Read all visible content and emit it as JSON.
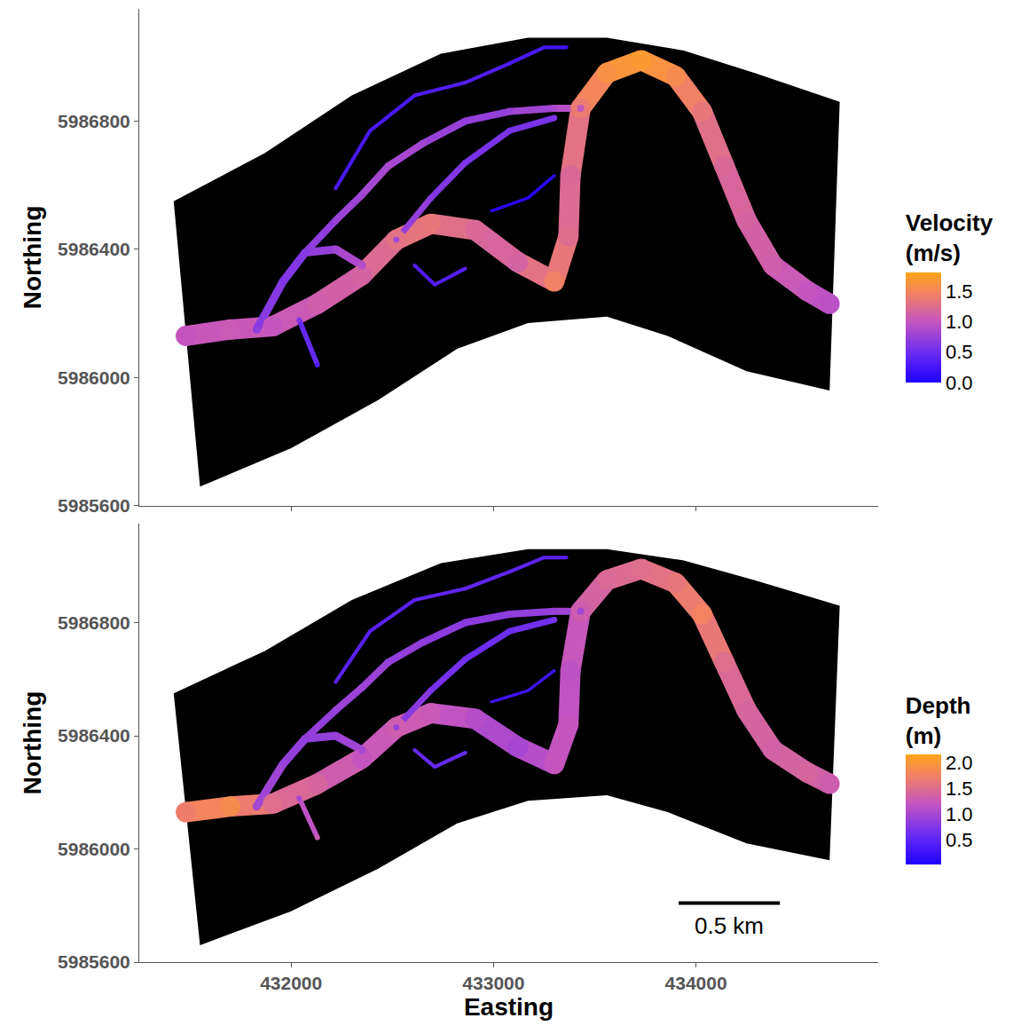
{
  "chart_data": [
    {
      "type": "map",
      "ylabel": "Northing",
      "xlim": [
        431250,
        434900
      ],
      "ylim": [
        5985600,
        5987150
      ],
      "xticks": [
        432000,
        433000,
        434000
      ],
      "yticks": [
        5985600,
        5986000,
        5986400,
        5986800
      ],
      "tick_labels": "y",
      "grid": false,
      "colorbar": {
        "title": "Velocity (m/s)",
        "range": [
          0,
          1.81
        ],
        "ticks": [
          {
            "value": 0,
            "label": "0.0"
          },
          0.5,
          {
            "value": 1,
            "label": "1.0"
          },
          1.5
        ]
      },
      "domain": {
        "x": [
          431420,
          431870,
          432300,
          432740,
          433170,
          433560,
          433940,
          434290,
          434710,
          434660,
          434250,
          433860,
          433560,
          433170,
          432820,
          432430,
          432000,
          431550
        ],
        "y": [
          5986550,
          5986700,
          5986880,
          5987010,
          5987060,
          5987060,
          5987020,
          5986950,
          5986860,
          5985960,
          5986020,
          5986130,
          5986190,
          5986170,
          5986090,
          5985930,
          5985780,
          5985660
        ]
      },
      "channels": [
        {
          "width": 100,
          "x": [
            431480,
            431700,
            431910,
            432130,
            432350,
            432520,
            432690,
            432910,
            433120,
            433300,
            433370,
            433380,
            433430,
            433560,
            433730,
            433900,
            434030,
            434140,
            434250,
            434380,
            434550,
            434660
          ],
          "y": [
            5986130,
            5986150,
            5986160,
            5986230,
            5986320,
            5986430,
            5986480,
            5986460,
            5986360,
            5986300,
            5986440,
            5986630,
            5986840,
            5986950,
            5986990,
            5986940,
            5986830,
            5986660,
            5986490,
            5986350,
            5986270,
            5986230
          ],
          "values": [
            1.0,
            1.05,
            1.0,
            1.1,
            1.15,
            1.3,
            1.35,
            1.2,
            1.15,
            1.45,
            1.25,
            1.2,
            1.4,
            1.6,
            1.7,
            1.55,
            1.35,
            1.2,
            1.15,
            1.1,
            1.0,
            0.95
          ]
        },
        {
          "width": 40,
          "x": [
            431830,
            431960,
            432070,
            432220,
            432350
          ],
          "y": [
            5986150,
            5986300,
            5986390,
            5986400,
            5986350
          ],
          "values": [
            0.7,
            0.6,
            0.65,
            0.8,
            0.9
          ]
        },
        {
          "width": 25,
          "x": [
            432040,
            432130
          ],
          "y": [
            5986180,
            5986040
          ],
          "values": [
            0.6,
            0.3
          ]
        },
        {
          "width": 35,
          "x": [
            432070,
            432220,
            432350,
            432480,
            432650,
            432860,
            433080,
            433300,
            433430
          ],
          "y": [
            5986390,
            5986490,
            5986570,
            5986660,
            5986730,
            5986800,
            5986830,
            5986840,
            5986840
          ],
          "values": [
            0.65,
            0.75,
            0.8,
            0.85,
            0.8,
            0.7,
            0.75,
            0.85,
            1.0
          ]
        },
        {
          "width": 18,
          "x": [
            432220,
            432390,
            432610,
            432860,
            433080,
            433250,
            433360
          ],
          "y": [
            5986590,
            5986770,
            5986880,
            5986920,
            5986980,
            5987030,
            5987030
          ],
          "values": [
            0.3,
            0.25,
            0.3,
            0.35,
            0.3,
            0.25,
            0.2
          ]
        },
        {
          "width": 30,
          "x": [
            432520,
            432690,
            432860,
            433080,
            433300
          ],
          "y": [
            5986430,
            5986560,
            5986670,
            5986770,
            5986810
          ],
          "values": [
            0.8,
            0.65,
            0.6,
            0.55,
            0.6
          ]
        },
        {
          "width": 18,
          "x": [
            432610,
            432710,
            432860
          ],
          "y": [
            5986350,
            5986290,
            5986340
          ],
          "values": [
            0.35,
            0.3,
            0.4
          ]
        },
        {
          "width": 15,
          "x": [
            432990,
            433170,
            433300
          ],
          "y": [
            5986520,
            5986560,
            5986630
          ],
          "values": [
            0.1,
            0.05,
            0.1
          ]
        }
      ]
    },
    {
      "type": "map",
      "xlabel": "Easting",
      "ylabel": "Northing",
      "xlim": [
        431250,
        434900
      ],
      "ylim": [
        5985600,
        5987150
      ],
      "xticks": [
        432000,
        433000,
        434000
      ],
      "yticks": [
        5985600,
        5986000,
        5986400,
        5986800
      ],
      "grid": false,
      "colorbar": {
        "title": "Depth (m)",
        "range": [
          0.03,
          2.15
        ],
        "ticks": [
          0.5,
          {
            "value": 1,
            "label": "1.0"
          },
          1.5,
          {
            "value": 2,
            "label": "2.0"
          }
        ]
      },
      "scale_bar": {
        "length": 500,
        "label": "0.5 km"
      },
      "domain": {
        "x": [
          431420,
          431870,
          432300,
          432740,
          433170,
          433560,
          433940,
          434290,
          434710,
          434660,
          434250,
          433860,
          433560,
          433170,
          432820,
          432430,
          432000,
          431550
        ],
        "y": [
          5986550,
          5986700,
          5986880,
          5987010,
          5987060,
          5987060,
          5987020,
          5986950,
          5986860,
          5985960,
          5986020,
          5986130,
          5986190,
          5986170,
          5986090,
          5985930,
          5985780,
          5985660
        ]
      },
      "channels": [
        {
          "width": 100,
          "x": [
            431480,
            431700,
            431910,
            432130,
            432350,
            432520,
            432690,
            432910,
            433120,
            433300,
            433370,
            433380,
            433430,
            433560,
            433730,
            433900,
            434030,
            434140,
            434250,
            434380,
            434550,
            434660
          ],
          "y": [
            5986130,
            5986150,
            5986160,
            5986230,
            5986320,
            5986430,
            5986480,
            5986460,
            5986360,
            5986300,
            5986440,
            5986630,
            5986840,
            5986950,
            5986990,
            5986940,
            5986830,
            5986660,
            5986490,
            5986350,
            5986270,
            5986230
          ],
          "values": [
            1.7,
            1.85,
            1.5,
            1.4,
            1.2,
            1.3,
            1.25,
            1.1,
            1.0,
            1.2,
            1.2,
            1.15,
            1.3,
            1.45,
            1.5,
            1.6,
            1.75,
            1.5,
            1.4,
            1.35,
            1.4,
            1.3
          ]
        },
        {
          "width": 40,
          "x": [
            431830,
            431960,
            432070,
            432220,
            432350
          ],
          "y": [
            5986150,
            5986300,
            5986390,
            5986400,
            5986350
          ],
          "values": [
            1.0,
            0.9,
            0.85,
            0.9,
            1.0
          ]
        },
        {
          "width": 25,
          "x": [
            432040,
            432130
          ],
          "y": [
            5986180,
            5986040
          ],
          "values": [
            1.0,
            1.3
          ]
        },
        {
          "width": 35,
          "x": [
            432070,
            432220,
            432350,
            432480,
            432650,
            432860,
            433080,
            433300,
            433430
          ],
          "y": [
            5986390,
            5986490,
            5986570,
            5986660,
            5986730,
            5986800,
            5986830,
            5986840,
            5986840
          ],
          "values": [
            0.85,
            0.9,
            0.95,
            0.9,
            0.85,
            0.8,
            0.85,
            0.9,
            1.0
          ]
        },
        {
          "width": 18,
          "x": [
            432220,
            432390,
            432610,
            432860,
            433080,
            433250,
            433360
          ],
          "y": [
            5986590,
            5986770,
            5986880,
            5986920,
            5986980,
            5987030,
            5987030
          ],
          "values": [
            0.5,
            0.45,
            0.5,
            0.55,
            0.5,
            0.5,
            0.45
          ]
        },
        {
          "width": 30,
          "x": [
            432520,
            432690,
            432860,
            433080,
            433300
          ],
          "y": [
            5986430,
            5986560,
            5986670,
            5986770,
            5986810
          ],
          "values": [
            0.9,
            0.7,
            0.65,
            0.6,
            0.7
          ]
        },
        {
          "width": 18,
          "x": [
            432610,
            432710,
            432860
          ],
          "y": [
            5986350,
            5986290,
            5986340
          ],
          "values": [
            0.6,
            0.55,
            0.6
          ]
        },
        {
          "width": 15,
          "x": [
            432990,
            433170,
            433300
          ],
          "y": [
            5986520,
            5986560,
            5986630
          ],
          "values": [
            0.3,
            0.25,
            0.3
          ]
        }
      ]
    }
  ]
}
